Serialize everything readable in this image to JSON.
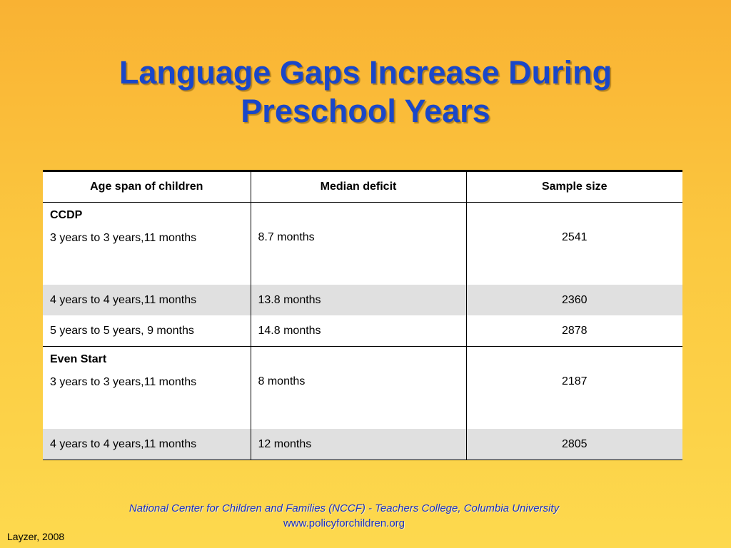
{
  "slide": {
    "title_line1": "Language Gaps Increase During",
    "title_line2": "Preschool Years"
  },
  "table": {
    "headers": [
      "Age span of children",
      "Median deficit",
      "Sample size"
    ],
    "groups": [
      {
        "label": "CCDP",
        "rows": [
          [
            "3 years to 3 years,11 months",
            "8.7 months",
            "2541"
          ],
          [
            "4 years to 4 years,11 months",
            "13.8 months",
            "2360"
          ],
          [
            "5 years to 5 years, 9 months",
            "14.8 months",
            "2878"
          ]
        ]
      },
      {
        "label": "Even Start",
        "rows": [
          [
            "3 years to 3 years,11 months",
            "8 months",
            "2187"
          ],
          [
            "4 years to 4 years,11 months",
            "12 months",
            "2805"
          ]
        ]
      }
    ]
  },
  "footer": {
    "org": "National Center for Children and Families (NCCF) - Teachers College, Columbia University",
    "url": "www.policyforchildren.org"
  },
  "citation": "Layzer, 2008",
  "colors": {
    "title": "#1a47c8",
    "footer_text": "#1a2fc0",
    "background_top": "#f9b233",
    "background_bottom": "#fdd94e",
    "row_shading": "#e0e0e0"
  }
}
